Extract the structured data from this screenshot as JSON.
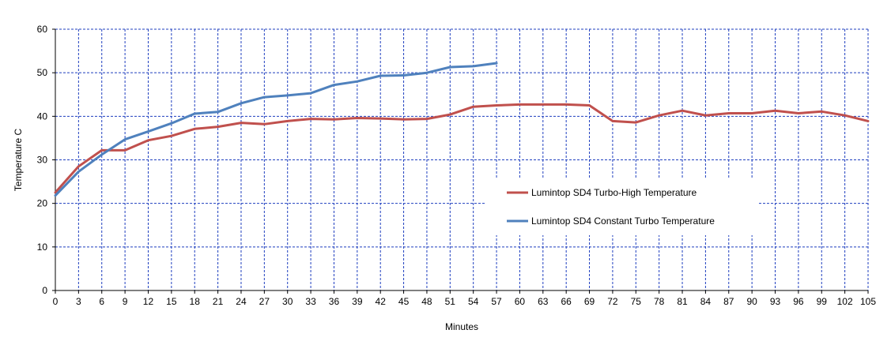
{
  "chart_data": {
    "type": "line",
    "title": "",
    "xlabel": "Minutes",
    "ylabel": "Temperature C",
    "xlim": [
      0,
      105
    ],
    "ylim": [
      0,
      60
    ],
    "x_ticks": [
      0,
      3,
      6,
      9,
      12,
      15,
      18,
      21,
      24,
      27,
      30,
      33,
      36,
      39,
      42,
      45,
      48,
      51,
      54,
      57,
      60,
      63,
      66,
      69,
      72,
      75,
      78,
      81,
      84,
      87,
      90,
      93,
      96,
      99,
      102,
      105
    ],
    "y_ticks": [
      0,
      10,
      20,
      30,
      40,
      50,
      60
    ],
    "grid": true,
    "legend_position": "right-middle",
    "series": [
      {
        "name": "Lumintop SD4 Turbo-High  Temperature",
        "color": "#c0504d",
        "x": [
          0,
          3,
          6,
          9,
          12,
          15,
          18,
          21,
          24,
          27,
          30,
          33,
          36,
          39,
          42,
          45,
          48,
          51,
          54,
          57,
          60,
          63,
          66,
          69,
          72,
          75,
          78,
          81,
          84,
          87,
          90,
          93,
          96,
          99,
          102,
          105
        ],
        "y": [
          22.5,
          28.5,
          32.2,
          32.2,
          34.5,
          35.5,
          37.1,
          37.6,
          38.5,
          38.2,
          38.9,
          39.4,
          39.3,
          39.6,
          39.5,
          39.3,
          39.4,
          40.4,
          42.2,
          42.5,
          42.7,
          42.7,
          42.7,
          42.5,
          38.9,
          38.6,
          40.2,
          41.3,
          40.2,
          40.7,
          40.7,
          41.3,
          40.7,
          41.1,
          40.2,
          38.9
        ]
      },
      {
        "name": "Lumintop SD4 Constant Turbo  Temperature",
        "color": "#4f81bd",
        "x": [
          0,
          3,
          6,
          9,
          12,
          15,
          18,
          21,
          24,
          27,
          30,
          33,
          36,
          39,
          42,
          45,
          48,
          51,
          54,
          57
        ],
        "y": [
          21.8,
          27.3,
          31.2,
          34.7,
          36.5,
          38.4,
          40.6,
          41.0,
          43.0,
          44.4,
          44.8,
          45.3,
          47.2,
          48.0,
          49.3,
          49.4,
          50.0,
          51.3,
          51.5,
          52.2
        ]
      }
    ]
  }
}
